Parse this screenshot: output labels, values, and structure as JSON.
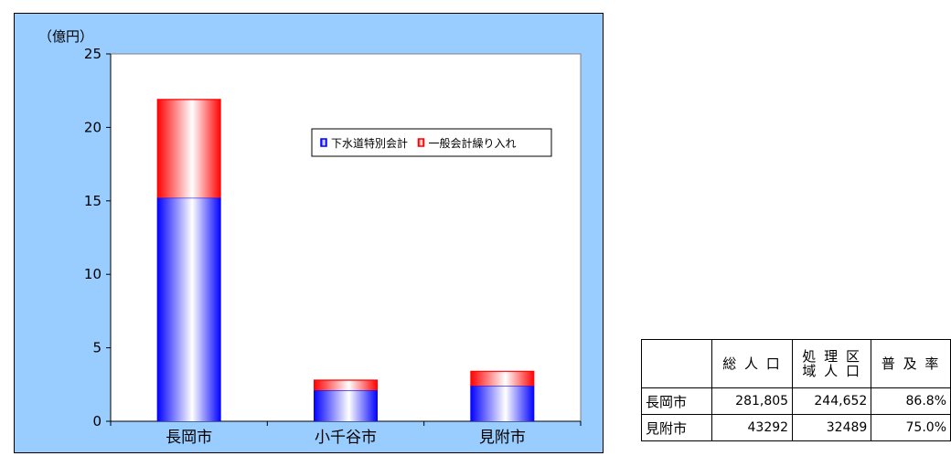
{
  "chart_data": {
    "type": "bar",
    "stacked": true,
    "unit": "（億円）",
    "categories": [
      "長岡市",
      "小千谷市",
      "見附市"
    ],
    "series": [
      {
        "name": "下水道特別会計",
        "values": [
          15.2,
          2.1,
          2.4
        ],
        "color": "#0000ff"
      },
      {
        "name": "一般会計繰り入れ",
        "values": [
          6.7,
          0.7,
          1.0
        ],
        "color": "#ff0000"
      }
    ],
    "ylim": [
      0,
      25
    ],
    "yticks": [
      0,
      5,
      10,
      15,
      20,
      25
    ],
    "grid": false,
    "legend_position": "top-right"
  },
  "table": {
    "headers": [
      "",
      "総人口",
      "処理区域人口",
      "普及率"
    ],
    "header_lines": [
      [],
      [
        "総 人 口"
      ],
      [
        "処 理 区",
        "域 人 口"
      ],
      [
        "普 及 率"
      ]
    ],
    "rows": [
      [
        "長岡市",
        "281,805",
        "244,652",
        "86.8%"
      ],
      [
        "見附市",
        "43292",
        "32489",
        "75.0%"
      ]
    ]
  }
}
